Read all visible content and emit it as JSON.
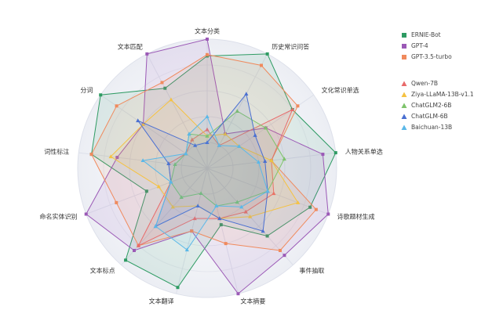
{
  "chart_data": {
    "type": "radar",
    "categories": [
      "文本分类",
      "历史常识问答",
      "文化常识单选",
      "人物关系单选",
      "诗歌题材生成",
      "事件抽取",
      "文本摘要",
      "文本翻译",
      "文本标点",
      "命名实体识别",
      "词性标注",
      "分词",
      "文本匹配"
    ],
    "rlim": [
      0,
      100
    ],
    "series": [
      {
        "name": "ERNIE-Bot",
        "color": "#2e9b63",
        "marker": "square",
        "values": [
          87,
          100,
          80,
          100,
          85,
          70,
          45,
          95,
          95,
          50,
          90,
          100,
          70
        ]
      },
      {
        "name": "GPT-4",
        "color": "#9b59b6",
        "marker": "square",
        "values": [
          100,
          30,
          55,
          90,
          100,
          90,
          100,
          50,
          85,
          100,
          70,
          60,
          100
        ]
      },
      {
        "name": "GPT-3.5-turbo",
        "color": "#f08a5d",
        "marker": "square",
        "values": [
          88,
          90,
          85,
          50,
          90,
          85,
          60,
          50,
          80,
          75,
          90,
          85,
          75
        ]
      },
      {
        "name": "Qwen-7B",
        "color": "#e86a6a",
        "marker": "triangle",
        "values": [
          30,
          20,
          80,
          50,
          55,
          45,
          40,
          40,
          80,
          30,
          30,
          20,
          25
        ]
      },
      {
        "name": "Ziya-LLaMA-13B-v1.1",
        "color": "#f5c242",
        "marker": "triangle",
        "values": [
          25,
          30,
          30,
          50,
          75,
          50,
          40,
          30,
          40,
          40,
          75,
          60,
          60
        ]
      },
      {
        "name": "ChatGLM2-6B",
        "color": "#7ec36b",
        "marker": "triangle",
        "values": [
          25,
          50,
          55,
          60,
          50,
          35,
          30,
          20,
          30,
          30,
          25,
          20,
          30
        ]
      },
      {
        "name": "ChatGLM-6B",
        "color": "#4a6fd1",
        "marker": "triangle",
        "values": [
          20,
          65,
          45,
          45,
          50,
          65,
          40,
          30,
          60,
          30,
          30,
          65,
          20
        ]
      },
      {
        "name": "Baichuan-13B",
        "color": "#5bb8e8",
        "marker": "triangle",
        "values": [
          40,
          20,
          30,
          40,
          50,
          40,
          30,
          65,
          60,
          30,
          50,
          20,
          30
        ]
      }
    ]
  }
}
